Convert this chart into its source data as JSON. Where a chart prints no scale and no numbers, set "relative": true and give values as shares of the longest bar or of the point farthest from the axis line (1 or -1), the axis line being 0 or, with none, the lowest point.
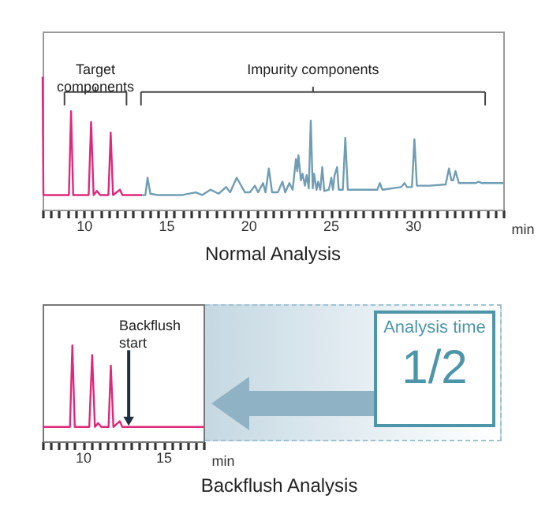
{
  "chart_data": [
    {
      "type": "line",
      "title": "Normal Analysis",
      "xlabel": "min",
      "relative": true,
      "xlim": [
        7.5,
        35.5
      ],
      "xticks": [
        {
          "value": 7.5,
          "label": null
        },
        {
          "value": 8,
          "label": null
        },
        {
          "value": 8.5,
          "label": null
        },
        {
          "value": 9,
          "label": null
        },
        {
          "value": 9.5,
          "label": null
        },
        10,
        {
          "value": 10.5,
          "label": null
        },
        {
          "value": 11,
          "label": null
        },
        {
          "value": 11.5,
          "label": null
        },
        {
          "value": 12,
          "label": null
        },
        {
          "value": 12.5,
          "label": null
        },
        {
          "value": 13,
          "label": null
        },
        {
          "value": 13.5,
          "label": null
        },
        {
          "value": 14,
          "label": null
        },
        {
          "value": 14.5,
          "label": null
        },
        15,
        {
          "value": 15.5,
          "label": null
        },
        {
          "value": 16,
          "label": null
        },
        {
          "value": 16.5,
          "label": null
        },
        {
          "value": 17,
          "label": null
        },
        {
          "value": 17.5,
          "label": null
        },
        {
          "value": 18,
          "label": null
        },
        {
          "value": 18.5,
          "label": null
        },
        {
          "value": 19,
          "label": null
        },
        {
          "value": 19.5,
          "label": null
        },
        20,
        {
          "value": 20.5,
          "label": null
        },
        {
          "value": 21,
          "label": null
        },
        {
          "value": 21.5,
          "label": null
        },
        {
          "value": 22,
          "label": null
        },
        {
          "value": 22.5,
          "label": null
        },
        {
          "value": 23,
          "label": null
        },
        {
          "value": 23.5,
          "label": null
        },
        {
          "value": 24,
          "label": null
        },
        {
          "value": 24.5,
          "label": null
        },
        25,
        {
          "value": 25.5,
          "label": null
        },
        {
          "value": 26,
          "label": null
        },
        {
          "value": 26.5,
          "label": null
        },
        {
          "value": 27,
          "label": null
        },
        {
          "value": 27.5,
          "label": null
        },
        {
          "value": 28,
          "label": null
        },
        {
          "value": 28.5,
          "label": null
        },
        {
          "value": 29,
          "label": null
        },
        {
          "value": 29.5,
          "label": null
        },
        30,
        {
          "value": 30.5,
          "label": null
        },
        {
          "value": 31,
          "label": null
        },
        {
          "value": 31.5,
          "label": null
        },
        {
          "value": 32,
          "label": null
        },
        {
          "value": 32.5,
          "label": null
        },
        {
          "value": 33,
          "label": null
        },
        {
          "value": 33.5,
          "label": null
        },
        {
          "value": 34,
          "label": null
        },
        {
          "value": 34.5,
          "label": null
        },
        {
          "value": 35,
          "label": null
        },
        {
          "value": 35.5,
          "label": null
        }
      ],
      "series": [
        {
          "color": "#e0287a",
          "x": [
            7.5,
            7.55,
            9.1,
            9.23,
            9.36,
            10.3,
            10.45,
            10.6,
            10.8,
            11.0,
            11.5,
            11.64,
            11.78,
            12.2,
            12.35,
            13.55
          ],
          "values": [
            1.0,
            0.11,
            0.11,
            0.74,
            0.11,
            0.11,
            0.66,
            0.11,
            0.14,
            0.11,
            0.11,
            0.58,
            0.11,
            0.15,
            0.11,
            0.11
          ]
        },
        {
          "color": "#6f9db3",
          "x": [
            13.55,
            13.75,
            13.88,
            14.05,
            14.5,
            16.0,
            16.8,
            17.2,
            17.7,
            18.2,
            18.65,
            18.9,
            19.3,
            19.8,
            20.1,
            20.4,
            20.6,
            20.9,
            21.05,
            21.25,
            21.45,
            21.8,
            22.08,
            22.25,
            22.5,
            22.7,
            22.9,
            22.98,
            23.05,
            23.2,
            23.3,
            23.45,
            23.55,
            23.68,
            23.8,
            23.92,
            24.0,
            24.15,
            24.25,
            24.38,
            24.5,
            24.62,
            24.9,
            25.05,
            25.15,
            25.25,
            25.4,
            25.5,
            25.75,
            25.9,
            26.05,
            27.0,
            27.85,
            28.0,
            28.15,
            29.3,
            29.5,
            29.65,
            29.95,
            30.1,
            30.25,
            31.0,
            32.0,
            32.2,
            32.35,
            32.45,
            32.6,
            32.8,
            33.8,
            34.0,
            34.2,
            35.5
          ],
          "values": [
            0.11,
            0.11,
            0.24,
            0.12,
            0.11,
            0.11,
            0.13,
            0.11,
            0.15,
            0.12,
            0.17,
            0.13,
            0.24,
            0.13,
            0.13,
            0.18,
            0.13,
            0.2,
            0.13,
            0.31,
            0.13,
            0.13,
            0.21,
            0.13,
            0.2,
            0.15,
            0.38,
            0.29,
            0.41,
            0.22,
            0.27,
            0.18,
            0.26,
            0.16,
            0.67,
            0.16,
            0.27,
            0.15,
            0.21,
            0.15,
            0.32,
            0.14,
            0.15,
            0.24,
            0.15,
            0.26,
            0.32,
            0.15,
            0.15,
            0.54,
            0.15,
            0.15,
            0.15,
            0.2,
            0.15,
            0.17,
            0.2,
            0.17,
            0.17,
            0.53,
            0.18,
            0.18,
            0.19,
            0.31,
            0.22,
            0.22,
            0.29,
            0.2,
            0.2,
            0.21,
            0.2,
            0.2
          ]
        }
      ],
      "annotations": [
        "Target components",
        "Impurity components"
      ]
    },
    {
      "type": "line",
      "title": "Backflush Analysis",
      "xlabel": "min",
      "relative": true,
      "xlim": [
        7.5,
        17.5
      ],
      "xticks": [
        {
          "value": 7.5,
          "label": null
        },
        {
          "value": 8,
          "label": null
        },
        {
          "value": 8.5,
          "label": null
        },
        {
          "value": 9,
          "label": null
        },
        {
          "value": 9.5,
          "label": null
        },
        10,
        {
          "value": 10.5,
          "label": null
        },
        {
          "value": 11,
          "label": null
        },
        {
          "value": 11.5,
          "label": null
        },
        {
          "value": 12,
          "label": null
        },
        {
          "value": 12.5,
          "label": null
        },
        {
          "value": 13,
          "label": null
        },
        {
          "value": 13.5,
          "label": null
        },
        {
          "value": 14,
          "label": null
        },
        {
          "value": 14.5,
          "label": null
        },
        15,
        {
          "value": 15.5,
          "label": null
        },
        {
          "value": 16,
          "label": null
        },
        {
          "value": 16.5,
          "label": null
        },
        {
          "value": 17,
          "label": null
        },
        {
          "value": 17.5,
          "label": null
        }
      ],
      "series": [
        {
          "color": "#e0287a",
          "x": [
            7.5,
            9.2,
            9.35,
            9.5,
            10.4,
            10.58,
            10.75,
            10.95,
            11.15,
            11.6,
            11.74,
            11.9,
            12.3,
            12.45,
            17.5
          ],
          "values": [
            0.15,
            0.15,
            1.0,
            0.15,
            0.15,
            0.9,
            0.15,
            0.19,
            0.15,
            0.15,
            0.79,
            0.15,
            0.21,
            0.15,
            0.15
          ]
        }
      ],
      "annotations": [
        {
          "text": "Backflush start",
          "x": 12.85,
          "y": 0.15
        },
        "Analysis time",
        "1/2"
      ]
    }
  ]
}
